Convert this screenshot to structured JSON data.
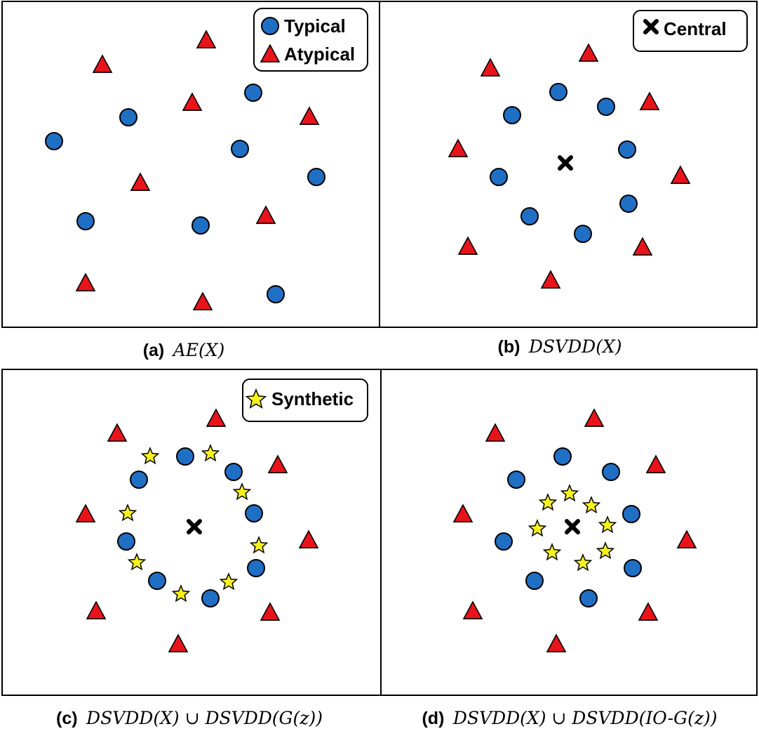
{
  "colors": {
    "typical": "#1f6fc5",
    "atypical": "#e8141b",
    "synthetic": "#f7f21c",
    "central": "#000000",
    "frame": "#000000"
  },
  "legend": {
    "typical_label": "Typical",
    "atypical_label": "Atypical",
    "central_label": "Central",
    "synthetic_label": "Synthetic"
  },
  "panels": [
    {
      "id": "a",
      "caption_tag": "(a)",
      "caption_math": "AE(X)",
      "legend_items": [
        "typical",
        "atypical"
      ]
    },
    {
      "id": "b",
      "caption_tag": "(b)",
      "caption_math": "DSVDD(X)",
      "legend_items": [
        "central"
      ]
    },
    {
      "id": "c",
      "caption_tag": "(c)",
      "caption_math": "DSVDD(X) ∪ DSVDD(G(z))",
      "legend_items": [
        "synthetic"
      ]
    },
    {
      "id": "d",
      "caption_tag": "(d)",
      "caption_math": "DSVDD(X) ∪ DSVDD(IO-G(z))",
      "legend_items": []
    }
  ]
}
